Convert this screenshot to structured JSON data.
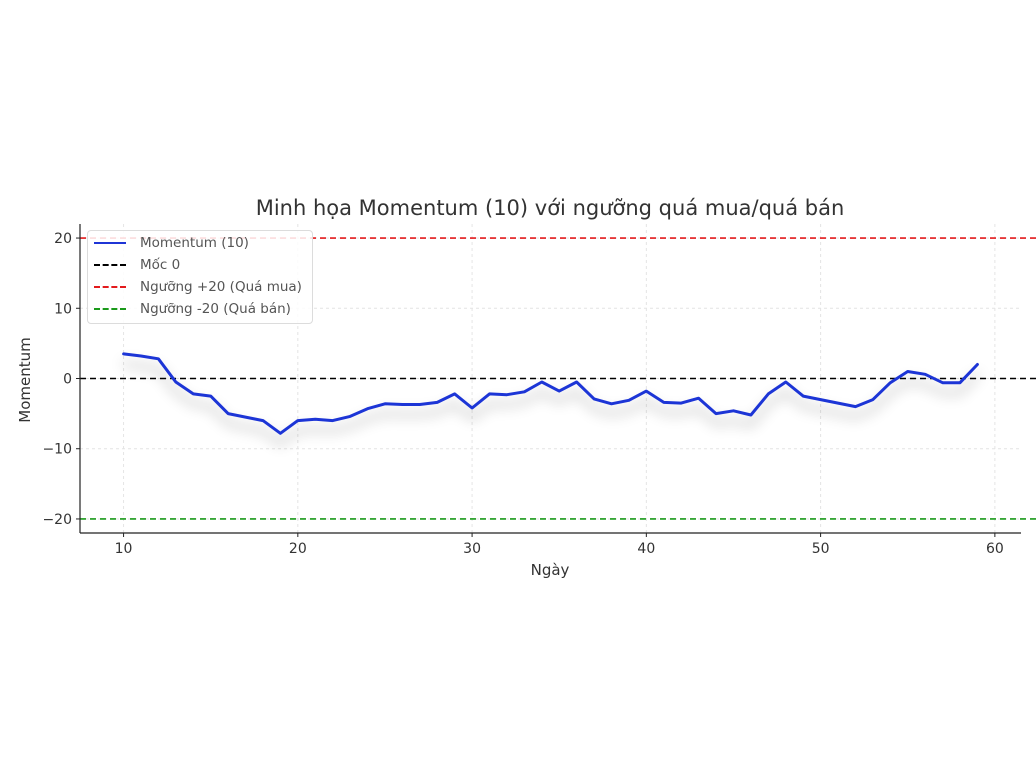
{
  "chart_data": {
    "type": "line",
    "title": "Minh họa Momentum (10) với ngưỡng quá mua/quá bán",
    "xlabel": "Ngày",
    "ylabel": "Momentum",
    "xlim": [
      7.5,
      61.5
    ],
    "ylim": [
      -22,
      22
    ],
    "x_ticks": [
      10,
      20,
      30,
      40,
      50,
      60
    ],
    "y_ticks": [
      -20,
      -10,
      0,
      10,
      20
    ],
    "y_tick_labels": [
      "−20",
      "−10",
      "0",
      "10",
      "20"
    ],
    "grid": true,
    "legend_position": "upper left",
    "series": [
      {
        "name": "Momentum (10)",
        "style": "solid",
        "color": "#1f35d6",
        "x": [
          10,
          11,
          12,
          13,
          14,
          15,
          16,
          17,
          18,
          19,
          20,
          21,
          22,
          23,
          24,
          25,
          26,
          27,
          28,
          29,
          30,
          31,
          32,
          33,
          34,
          35,
          36,
          37,
          38,
          39,
          40,
          41,
          42,
          43,
          44,
          45,
          46,
          47,
          48,
          49,
          50,
          51,
          52,
          53,
          54,
          55,
          56,
          57,
          58,
          59
        ],
        "values": [
          3.5,
          3.2,
          2.8,
          -0.5,
          -2.2,
          -2.5,
          -5.0,
          -5.5,
          -6.0,
          -7.8,
          -6.0,
          -5.8,
          -6.0,
          -5.4,
          -4.3,
          -3.6,
          -3.7,
          -3.7,
          -3.4,
          -2.2,
          -4.2,
          -2.2,
          -2.3,
          -1.9,
          -0.5,
          -1.8,
          -0.5,
          -2.9,
          -3.6,
          -3.1,
          -1.8,
          -3.4,
          -3.5,
          -2.8,
          -5.0,
          -4.6,
          -5.2,
          -2.2,
          -0.5,
          -2.5,
          -3.0,
          -3.5,
          -4.0,
          -3.0,
          -0.6,
          1.0,
          0.6,
          -0.6,
          -0.6,
          2.0
        ]
      },
      {
        "name": "Mốc 0",
        "style": "dashed",
        "color": "#000000",
        "y": 0
      },
      {
        "name": "Ngưỡng +20 (Quá mua)",
        "style": "dashed",
        "color": "#e31a1c",
        "y": 20
      },
      {
        "name": "Ngưỡng -20 (Quá bán)",
        "style": "dashed",
        "color": "#1a9a1a",
        "y": -20
      }
    ]
  },
  "legend": {
    "items": [
      {
        "label": "Momentum (10)",
        "color": "#1f35d6",
        "dashed": false
      },
      {
        "label": "Mốc 0",
        "color": "#000000",
        "dashed": true
      },
      {
        "label": "Ngưỡng +20 (Quá mua)",
        "color": "#e31a1c",
        "dashed": true
      },
      {
        "label": "Ngưỡng -20 (Quá bán)",
        "color": "#1a9a1a",
        "dashed": true
      }
    ]
  }
}
